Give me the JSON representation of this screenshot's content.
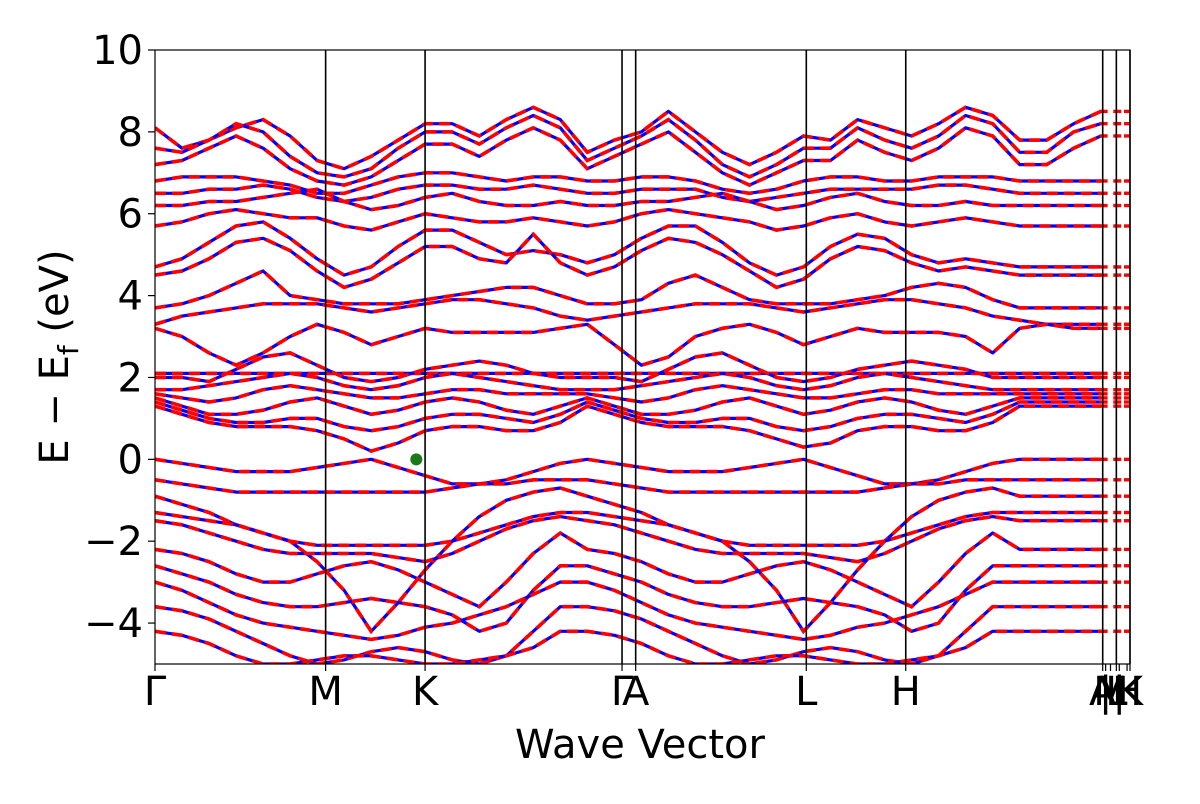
{
  "chart_data": {
    "type": "line",
    "title": "",
    "xlabel": "Wave Vector",
    "ylabel_main": "E − E",
    "ylabel_sub": "f",
    "ylabel_unit": " (eV)",
    "ylim": [
      -5,
      10
    ],
    "yticks": [
      -4,
      -2,
      0,
      2,
      4,
      6,
      8,
      10
    ],
    "ytick_labels": [
      "−4",
      "−2",
      "0",
      "2",
      "4",
      "6",
      "8",
      "10"
    ],
    "xlim": [
      0,
      1
    ],
    "high_symmetry_points": [
      {
        "label": "Γ",
        "x": 0.0
      },
      {
        "label": "M",
        "x": 0.175
      },
      {
        "label": "K",
        "x": 0.277
      },
      {
        "label": "Γ",
        "x": 0.479
      },
      {
        "label": "A",
        "x": 0.493
      },
      {
        "label": "L",
        "x": 0.668
      },
      {
        "label": "H",
        "x": 0.77
      },
      {
        "label": "A",
        "x": 0.972
      },
      {
        "label": "|",
        "x": 0.975
      },
      {
        "label": "L",
        "x": 0.986
      },
      {
        "label": "M",
        "x": 0.98
      },
      {
        "label": "|",
        "x": 0.989
      },
      {
        "label": "H",
        "x": 0.997
      },
      {
        "label": "K",
        "x": 1.0
      }
    ],
    "marker": {
      "x": 0.268,
      "y": 0.0,
      "color": "#1a7a1a"
    },
    "series": [
      {
        "color": "#0000ff",
        "style": "solid"
      },
      {
        "color": "#ff0000",
        "style": "dashed"
      }
    ],
    "bands": [
      [
        8.1,
        7.6,
        7.8,
        8.1,
        8.3,
        7.9,
        7.3,
        7.1,
        7.4,
        7.8,
        8.2,
        8.2,
        7.9,
        8.3,
        8.6,
        8.3,
        7.5,
        7.8,
        8.0,
        8.5,
        8.0,
        7.5,
        7.2,
        7.5,
        7.9,
        7.8,
        8.3,
        8.1,
        7.9,
        8.2,
        8.6,
        8.4,
        7.8,
        7.8,
        8.2,
        8.5
      ],
      [
        7.6,
        7.5,
        7.8,
        8.2,
        8.0,
        7.4,
        7.0,
        6.9,
        7.1,
        7.6,
        8.0,
        8.0,
        7.7,
        8.1,
        8.4,
        8.1,
        7.3,
        7.6,
        7.9,
        8.3,
        7.8,
        7.2,
        6.9,
        7.2,
        7.6,
        7.6,
        8.1,
        7.8,
        7.6,
        7.9,
        8.4,
        8.2,
        7.5,
        7.5,
        8.0,
        8.2
      ],
      [
        7.2,
        7.3,
        7.6,
        7.9,
        7.6,
        7.1,
        6.8,
        6.7,
        6.9,
        7.3,
        7.7,
        7.7,
        7.4,
        7.8,
        8.1,
        7.8,
        7.1,
        7.4,
        7.7,
        8.0,
        7.5,
        7.0,
        6.7,
        7.0,
        7.3,
        7.3,
        7.8,
        7.5,
        7.3,
        7.6,
        8.1,
        7.9,
        7.2,
        7.2,
        7.6,
        7.9
      ],
      [
        6.8,
        6.9,
        6.9,
        6.9,
        6.8,
        6.7,
        6.5,
        6.5,
        6.7,
        6.9,
        7.0,
        7.0,
        6.9,
        6.8,
        6.9,
        6.9,
        6.8,
        6.8,
        6.9,
        6.9,
        6.8,
        6.6,
        6.5,
        6.6,
        6.8,
        6.9,
        6.9,
        6.8,
        6.8,
        6.9,
        6.9,
        6.9,
        6.8,
        6.8,
        6.8,
        6.8
      ],
      [
        6.5,
        6.5,
        6.6,
        6.6,
        6.7,
        6.6,
        6.4,
        6.3,
        6.4,
        6.6,
        6.7,
        6.7,
        6.6,
        6.6,
        6.7,
        6.6,
        6.5,
        6.5,
        6.6,
        6.6,
        6.6,
        6.4,
        6.3,
        6.4,
        6.5,
        6.6,
        6.6,
        6.6,
        6.6,
        6.7,
        6.7,
        6.6,
        6.5,
        6.5,
        6.5,
        6.5
      ],
      [
        6.2,
        6.2,
        6.3,
        6.3,
        6.4,
        6.5,
        6.6,
        6.3,
        6.1,
        6.2,
        6.4,
        6.5,
        6.3,
        6.2,
        6.2,
        6.3,
        6.2,
        6.2,
        6.3,
        6.3,
        6.4,
        6.5,
        6.3,
        6.1,
        6.2,
        6.4,
        6.5,
        6.3,
        6.2,
        6.2,
        6.3,
        6.2,
        6.2,
        6.2,
        6.2,
        6.2
      ],
      [
        5.7,
        5.8,
        6.0,
        6.1,
        6.0,
        5.9,
        5.9,
        5.7,
        5.6,
        5.8,
        6.0,
        5.9,
        5.8,
        5.8,
        5.9,
        5.8,
        5.7,
        5.8,
        6.0,
        6.1,
        6.0,
        5.9,
        5.8,
        5.6,
        5.7,
        5.9,
        6.0,
        5.8,
        5.7,
        5.8,
        5.9,
        5.8,
        5.7,
        5.7,
        5.7,
        5.7
      ],
      [
        4.7,
        4.9,
        5.3,
        5.7,
        5.8,
        5.4,
        4.9,
        4.5,
        4.7,
        5.2,
        5.6,
        5.6,
        5.3,
        5.0,
        5.1,
        5.0,
        4.8,
        5.0,
        5.4,
        5.7,
        5.7,
        5.3,
        4.8,
        4.5,
        4.7,
        5.2,
        5.5,
        5.4,
        5.0,
        4.8,
        4.9,
        4.8,
        4.7,
        4.7,
        4.7,
        4.7
      ],
      [
        4.5,
        4.6,
        4.9,
        5.3,
        5.4,
        5.1,
        4.6,
        4.2,
        4.4,
        4.8,
        5.2,
        5.2,
        4.9,
        4.8,
        5.5,
        4.8,
        4.5,
        4.7,
        5.1,
        5.4,
        5.3,
        5.0,
        4.6,
        4.2,
        4.4,
        4.9,
        5.2,
        5.1,
        4.8,
        4.6,
        4.7,
        4.6,
        4.5,
        4.5,
        4.5,
        4.5
      ],
      [
        3.7,
        3.8,
        4.0,
        4.3,
        4.6,
        4.0,
        3.9,
        3.8,
        3.8,
        3.8,
        3.9,
        4.0,
        4.1,
        4.2,
        4.2,
        4.0,
        3.8,
        3.8,
        3.9,
        4.3,
        4.5,
        4.2,
        3.9,
        3.8,
        3.8,
        3.8,
        3.9,
        4.0,
        4.2,
        4.3,
        4.2,
        3.9,
        3.7,
        3.7,
        3.7,
        3.7
      ],
      [
        3.3,
        3.5,
        3.6,
        3.7,
        3.8,
        3.8,
        3.8,
        3.7,
        3.6,
        3.7,
        3.8,
        3.9,
        3.9,
        3.8,
        3.7,
        3.5,
        3.4,
        3.5,
        3.6,
        3.7,
        3.8,
        3.8,
        3.8,
        3.7,
        3.6,
        3.7,
        3.8,
        3.9,
        3.9,
        3.8,
        3.7,
        3.5,
        3.4,
        3.3,
        3.3,
        3.3
      ],
      [
        3.2,
        3.0,
        2.6,
        2.3,
        2.6,
        3.0,
        3.3,
        3.1,
        2.8,
        3.0,
        3.2,
        3.1,
        3.1,
        3.1,
        3.1,
        3.2,
        3.3,
        2.8,
        2.3,
        2.5,
        3.0,
        3.2,
        3.3,
        3.1,
        2.8,
        3.0,
        3.2,
        3.1,
        3.1,
        3.1,
        3.0,
        2.6,
        3.2,
        3.3,
        3.2,
        3.2
      ],
      [
        2.1,
        2.1,
        2.1,
        2.1,
        2.1,
        2.1,
        2.1,
        2.1,
        2.1,
        2.1,
        2.1,
        2.1,
        2.1,
        2.1,
        2.1,
        2.1,
        2.1,
        2.1,
        2.1,
        2.1,
        2.1,
        2.1,
        2.1,
        2.1,
        2.1,
        2.1,
        2.1,
        2.1,
        2.1,
        2.1,
        2.1,
        2.1,
        2.1,
        2.1,
        2.1,
        2.1
      ],
      [
        2.0,
        2.0,
        1.9,
        2.2,
        2.5,
        2.6,
        2.3,
        2.0,
        1.9,
        2.0,
        2.2,
        2.3,
        2.4,
        2.3,
        2.1,
        2.0,
        2.0,
        2.0,
        1.9,
        2.2,
        2.5,
        2.6,
        2.3,
        2.0,
        1.9,
        2.0,
        2.2,
        2.3,
        2.4,
        2.3,
        2.2,
        2.0,
        2.0,
        2.0,
        2.0,
        2.0
      ],
      [
        1.7,
        1.7,
        1.8,
        1.9,
        2.0,
        2.1,
        2.0,
        1.8,
        1.7,
        1.8,
        2.0,
        2.1,
        2.0,
        1.9,
        1.8,
        1.7,
        1.7,
        1.7,
        1.8,
        1.9,
        2.0,
        2.1,
        2.0,
        1.8,
        1.7,
        1.8,
        2.0,
        2.1,
        2.0,
        1.9,
        1.8,
        1.7,
        1.7,
        1.7,
        1.7,
        1.7
      ],
      [
        1.6,
        1.5,
        1.4,
        1.5,
        1.7,
        1.8,
        1.7,
        1.6,
        1.5,
        1.5,
        1.6,
        1.7,
        1.7,
        1.6,
        1.6,
        1.6,
        1.6,
        1.5,
        1.4,
        1.5,
        1.7,
        1.8,
        1.7,
        1.6,
        1.5,
        1.5,
        1.6,
        1.7,
        1.7,
        1.6,
        1.6,
        1.6,
        1.6,
        1.6,
        1.6,
        1.6
      ],
      [
        1.5,
        1.3,
        1.1,
        1.1,
        1.2,
        1.4,
        1.5,
        1.3,
        1.1,
        1.2,
        1.4,
        1.5,
        1.4,
        1.2,
        1.1,
        1.3,
        1.5,
        1.3,
        1.1,
        1.1,
        1.2,
        1.4,
        1.5,
        1.3,
        1.1,
        1.2,
        1.4,
        1.5,
        1.4,
        1.2,
        1.1,
        1.3,
        1.5,
        1.5,
        1.5,
        1.5
      ],
      [
        1.4,
        1.2,
        1.0,
        0.9,
        0.9,
        1.0,
        1.0,
        0.8,
        0.7,
        0.8,
        1.0,
        1.1,
        1.1,
        1.0,
        0.9,
        1.1,
        1.4,
        1.2,
        1.0,
        0.9,
        0.9,
        1.0,
        1.0,
        0.8,
        0.7,
        0.8,
        1.0,
        1.1,
        1.1,
        1.0,
        0.9,
        1.1,
        1.4,
        1.4,
        1.4,
        1.4
      ],
      [
        1.3,
        1.1,
        0.9,
        0.8,
        0.8,
        0.8,
        0.7,
        0.5,
        0.2,
        0.4,
        0.7,
        0.8,
        0.8,
        0.7,
        0.7,
        0.9,
        1.3,
        1.1,
        0.9,
        0.8,
        0.8,
        0.8,
        0.7,
        0.5,
        0.3,
        0.4,
        0.7,
        0.8,
        0.8,
        0.7,
        0.7,
        0.9,
        1.3,
        1.3,
        1.3,
        1.3
      ],
      [
        0.0,
        -0.1,
        -0.2,
        -0.3,
        -0.3,
        -0.3,
        -0.2,
        -0.1,
        0.0,
        -0.2,
        -0.4,
        -0.6,
        -0.6,
        -0.5,
        -0.3,
        -0.1,
        0.0,
        -0.1,
        -0.2,
        -0.3,
        -0.3,
        -0.3,
        -0.2,
        -0.1,
        0.0,
        -0.2,
        -0.4,
        -0.6,
        -0.6,
        -0.5,
        -0.3,
        -0.1,
        0.0,
        0.0,
        0.0,
        0.0
      ],
      [
        -0.5,
        -0.6,
        -0.7,
        -0.8,
        -0.8,
        -0.8,
        -0.8,
        -0.8,
        -0.8,
        -0.8,
        -0.8,
        -0.7,
        -0.6,
        -0.6,
        -0.5,
        -0.5,
        -0.5,
        -0.6,
        -0.7,
        -0.8,
        -0.8,
        -0.8,
        -0.8,
        -0.8,
        -0.8,
        -0.8,
        -0.8,
        -0.7,
        -0.6,
        -0.6,
        -0.5,
        -0.5,
        -0.5,
        -0.5,
        -0.5,
        -0.5
      ],
      [
        -0.9,
        -1.1,
        -1.3,
        -1.6,
        -1.8,
        -2.0,
        -2.5,
        -3.2,
        -4.2,
        -3.5,
        -2.7,
        -2.0,
        -1.4,
        -1.0,
        -0.8,
        -0.7,
        -0.9,
        -1.1,
        -1.3,
        -1.6,
        -1.8,
        -2.0,
        -2.5,
        -3.2,
        -4.2,
        -3.5,
        -2.7,
        -2.0,
        -1.4,
        -1.0,
        -0.8,
        -0.7,
        -0.9,
        -0.9,
        -0.9,
        -0.9
      ],
      [
        -1.3,
        -1.4,
        -1.5,
        -1.6,
        -1.8,
        -2.0,
        -2.1,
        -2.1,
        -2.1,
        -2.1,
        -2.1,
        -2.0,
        -1.8,
        -1.6,
        -1.4,
        -1.3,
        -1.3,
        -1.4,
        -1.5,
        -1.6,
        -1.8,
        -2.0,
        -2.1,
        -2.1,
        -2.1,
        -2.1,
        -2.1,
        -2.0,
        -1.8,
        -1.6,
        -1.4,
        -1.3,
        -1.3,
        -1.3,
        -1.3,
        -1.3
      ],
      [
        -1.5,
        -1.6,
        -1.8,
        -2.0,
        -2.2,
        -2.3,
        -2.3,
        -2.3,
        -2.3,
        -2.4,
        -2.5,
        -2.3,
        -2.0,
        -1.7,
        -1.5,
        -1.4,
        -1.5,
        -1.6,
        -1.8,
        -2.0,
        -2.2,
        -2.3,
        -2.3,
        -2.3,
        -2.3,
        -2.4,
        -2.5,
        -2.3,
        -2.0,
        -1.7,
        -1.5,
        -1.4,
        -1.5,
        -1.5,
        -1.5,
        -1.5
      ],
      [
        -2.2,
        -2.3,
        -2.5,
        -2.8,
        -3.0,
        -3.0,
        -2.8,
        -2.6,
        -2.5,
        -2.7,
        -3.0,
        -3.3,
        -3.6,
        -3.0,
        -2.3,
        -1.8,
        -2.2,
        -2.3,
        -2.5,
        -2.8,
        -3.0,
        -3.0,
        -2.8,
        -2.6,
        -2.5,
        -2.7,
        -3.0,
        -3.3,
        -3.6,
        -3.0,
        -2.3,
        -1.8,
        -2.2,
        -2.2,
        -2.2,
        -2.2
      ],
      [
        -2.6,
        -2.8,
        -3.0,
        -3.3,
        -3.5,
        -3.6,
        -3.6,
        -3.5,
        -3.4,
        -3.5,
        -3.6,
        -3.8,
        -4.2,
        -4.0,
        -3.2,
        -2.6,
        -2.6,
        -2.8,
        -3.0,
        -3.3,
        -3.5,
        -3.6,
        -3.6,
        -3.5,
        -3.4,
        -3.5,
        -3.6,
        -3.8,
        -4.2,
        -4.0,
        -3.2,
        -2.6,
        -2.6,
        -2.6,
        -2.6,
        -2.6
      ],
      [
        -3.0,
        -3.2,
        -3.5,
        -3.8,
        -4.0,
        -4.1,
        -4.2,
        -4.3,
        -4.4,
        -4.3,
        -4.1,
        -4.0,
        -3.8,
        -3.6,
        -3.3,
        -3.0,
        -3.0,
        -3.2,
        -3.5,
        -3.8,
        -4.0,
        -4.1,
        -4.2,
        -4.3,
        -4.4,
        -4.3,
        -4.1,
        -4.0,
        -3.8,
        -3.6,
        -3.3,
        -3.0,
        -3.0,
        -3.0,
        -3.0,
        -3.0
      ],
      [
        -3.6,
        -3.7,
        -3.9,
        -4.2,
        -4.5,
        -4.8,
        -5.0,
        -4.9,
        -4.7,
        -4.6,
        -4.7,
        -4.9,
        -5.0,
        -4.8,
        -4.2,
        -3.6,
        -3.6,
        -3.7,
        -3.9,
        -4.2,
        -4.5,
        -4.8,
        -5.0,
        -4.9,
        -4.7,
        -4.6,
        -4.7,
        -4.9,
        -5.0,
        -4.8,
        -4.2,
        -3.6,
        -3.6,
        -3.6,
        -3.6,
        -3.6
      ],
      [
        -4.2,
        -4.3,
        -4.5,
        -4.8,
        -5.0,
        -5.0,
        -4.9,
        -4.8,
        -4.8,
        -4.9,
        -5.0,
        -5.0,
        -4.9,
        -4.8,
        -4.6,
        -4.2,
        -4.2,
        -4.3,
        -4.5,
        -4.8,
        -5.0,
        -5.0,
        -4.9,
        -4.8,
        -4.8,
        -4.9,
        -5.0,
        -5.0,
        -4.9,
        -4.8,
        -4.6,
        -4.2,
        -4.2,
        -4.2,
        -4.2,
        -4.2
      ]
    ]
  }
}
